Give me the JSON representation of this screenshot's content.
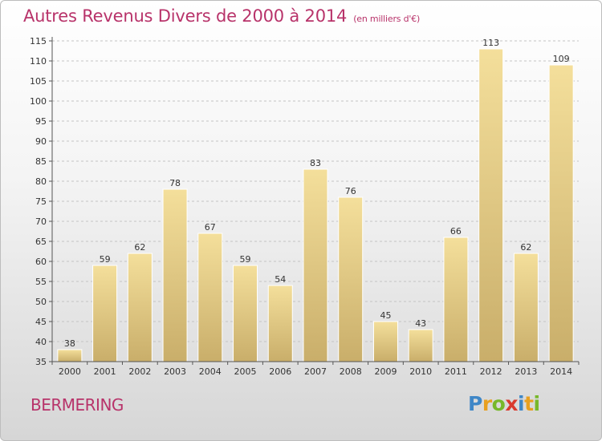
{
  "title": {
    "main": "Autres Revenus Divers de 2000 à 2014",
    "unit": "(en milliers d'€)"
  },
  "footer": {
    "place": "BERMERING",
    "logo_letters": [
      {
        "ch": "P",
        "color": "#3f87c7"
      },
      {
        "ch": "r",
        "color": "#e8a020"
      },
      {
        "ch": "o",
        "color": "#77b82a"
      },
      {
        "ch": "x",
        "color": "#d93a2e"
      },
      {
        "ch": "i",
        "color": "#3f87c7"
      },
      {
        "ch": "t",
        "color": "#e8a020"
      },
      {
        "ch": "i",
        "color": "#77b82a"
      }
    ]
  },
  "colors": {
    "title": "#b8336a",
    "bar_light": "#f4df9b",
    "bar_dark": "#c9ae6a"
  },
  "chart_data": {
    "type": "bar",
    "categories": [
      "2000",
      "2001",
      "2002",
      "2003",
      "2004",
      "2005",
      "2006",
      "2007",
      "2008",
      "2009",
      "2010",
      "2011",
      "2012",
      "2013",
      "2014"
    ],
    "values": [
      38,
      59,
      62,
      78,
      67,
      59,
      54,
      83,
      76,
      45,
      43,
      66,
      113,
      62,
      109
    ],
    "ylim": [
      35,
      115
    ],
    "yticks": [
      35,
      40,
      45,
      50,
      55,
      60,
      65,
      70,
      75,
      80,
      85,
      90,
      95,
      100,
      105,
      110,
      115
    ],
    "grid": "horizontal dashed",
    "legend": "none"
  }
}
